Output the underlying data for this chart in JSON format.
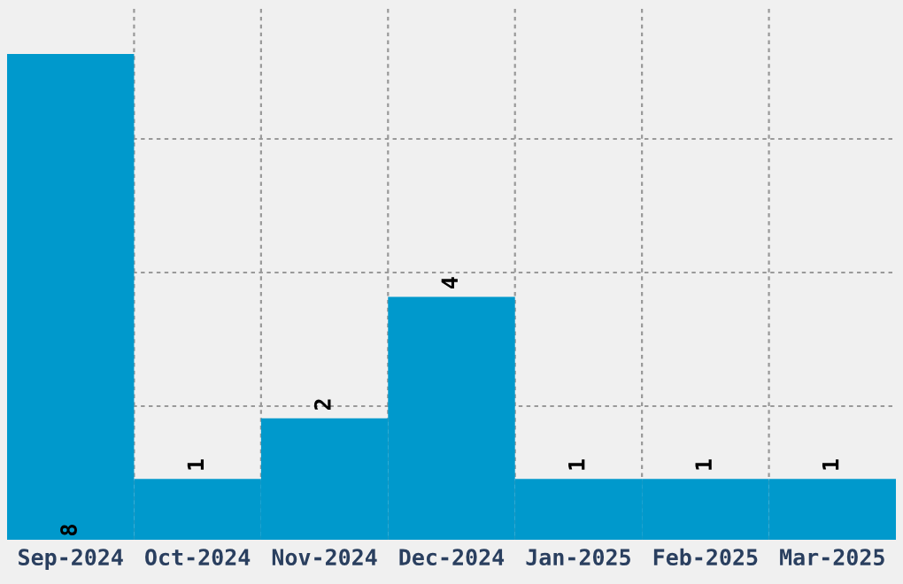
{
  "chart_data": {
    "type": "bar",
    "categories": [
      "Sep-2024",
      "Oct-2024",
      "Nov-2024",
      "Dec-2024",
      "Jan-2025",
      "Feb-2025",
      "Mar-2025"
    ],
    "values": [
      8,
      1,
      2,
      4,
      1,
      1,
      1
    ],
    "color": "#0099cc",
    "ylim": [
      0,
      8.8
    ],
    "yticks": [
      {
        "value": 2.2,
        "label": null
      },
      {
        "value": 4.4,
        "label": null
      },
      {
        "value": 6.6,
        "label": null
      }
    ],
    "tick_labels": "x",
    "grid": true,
    "data_labels": true
  }
}
